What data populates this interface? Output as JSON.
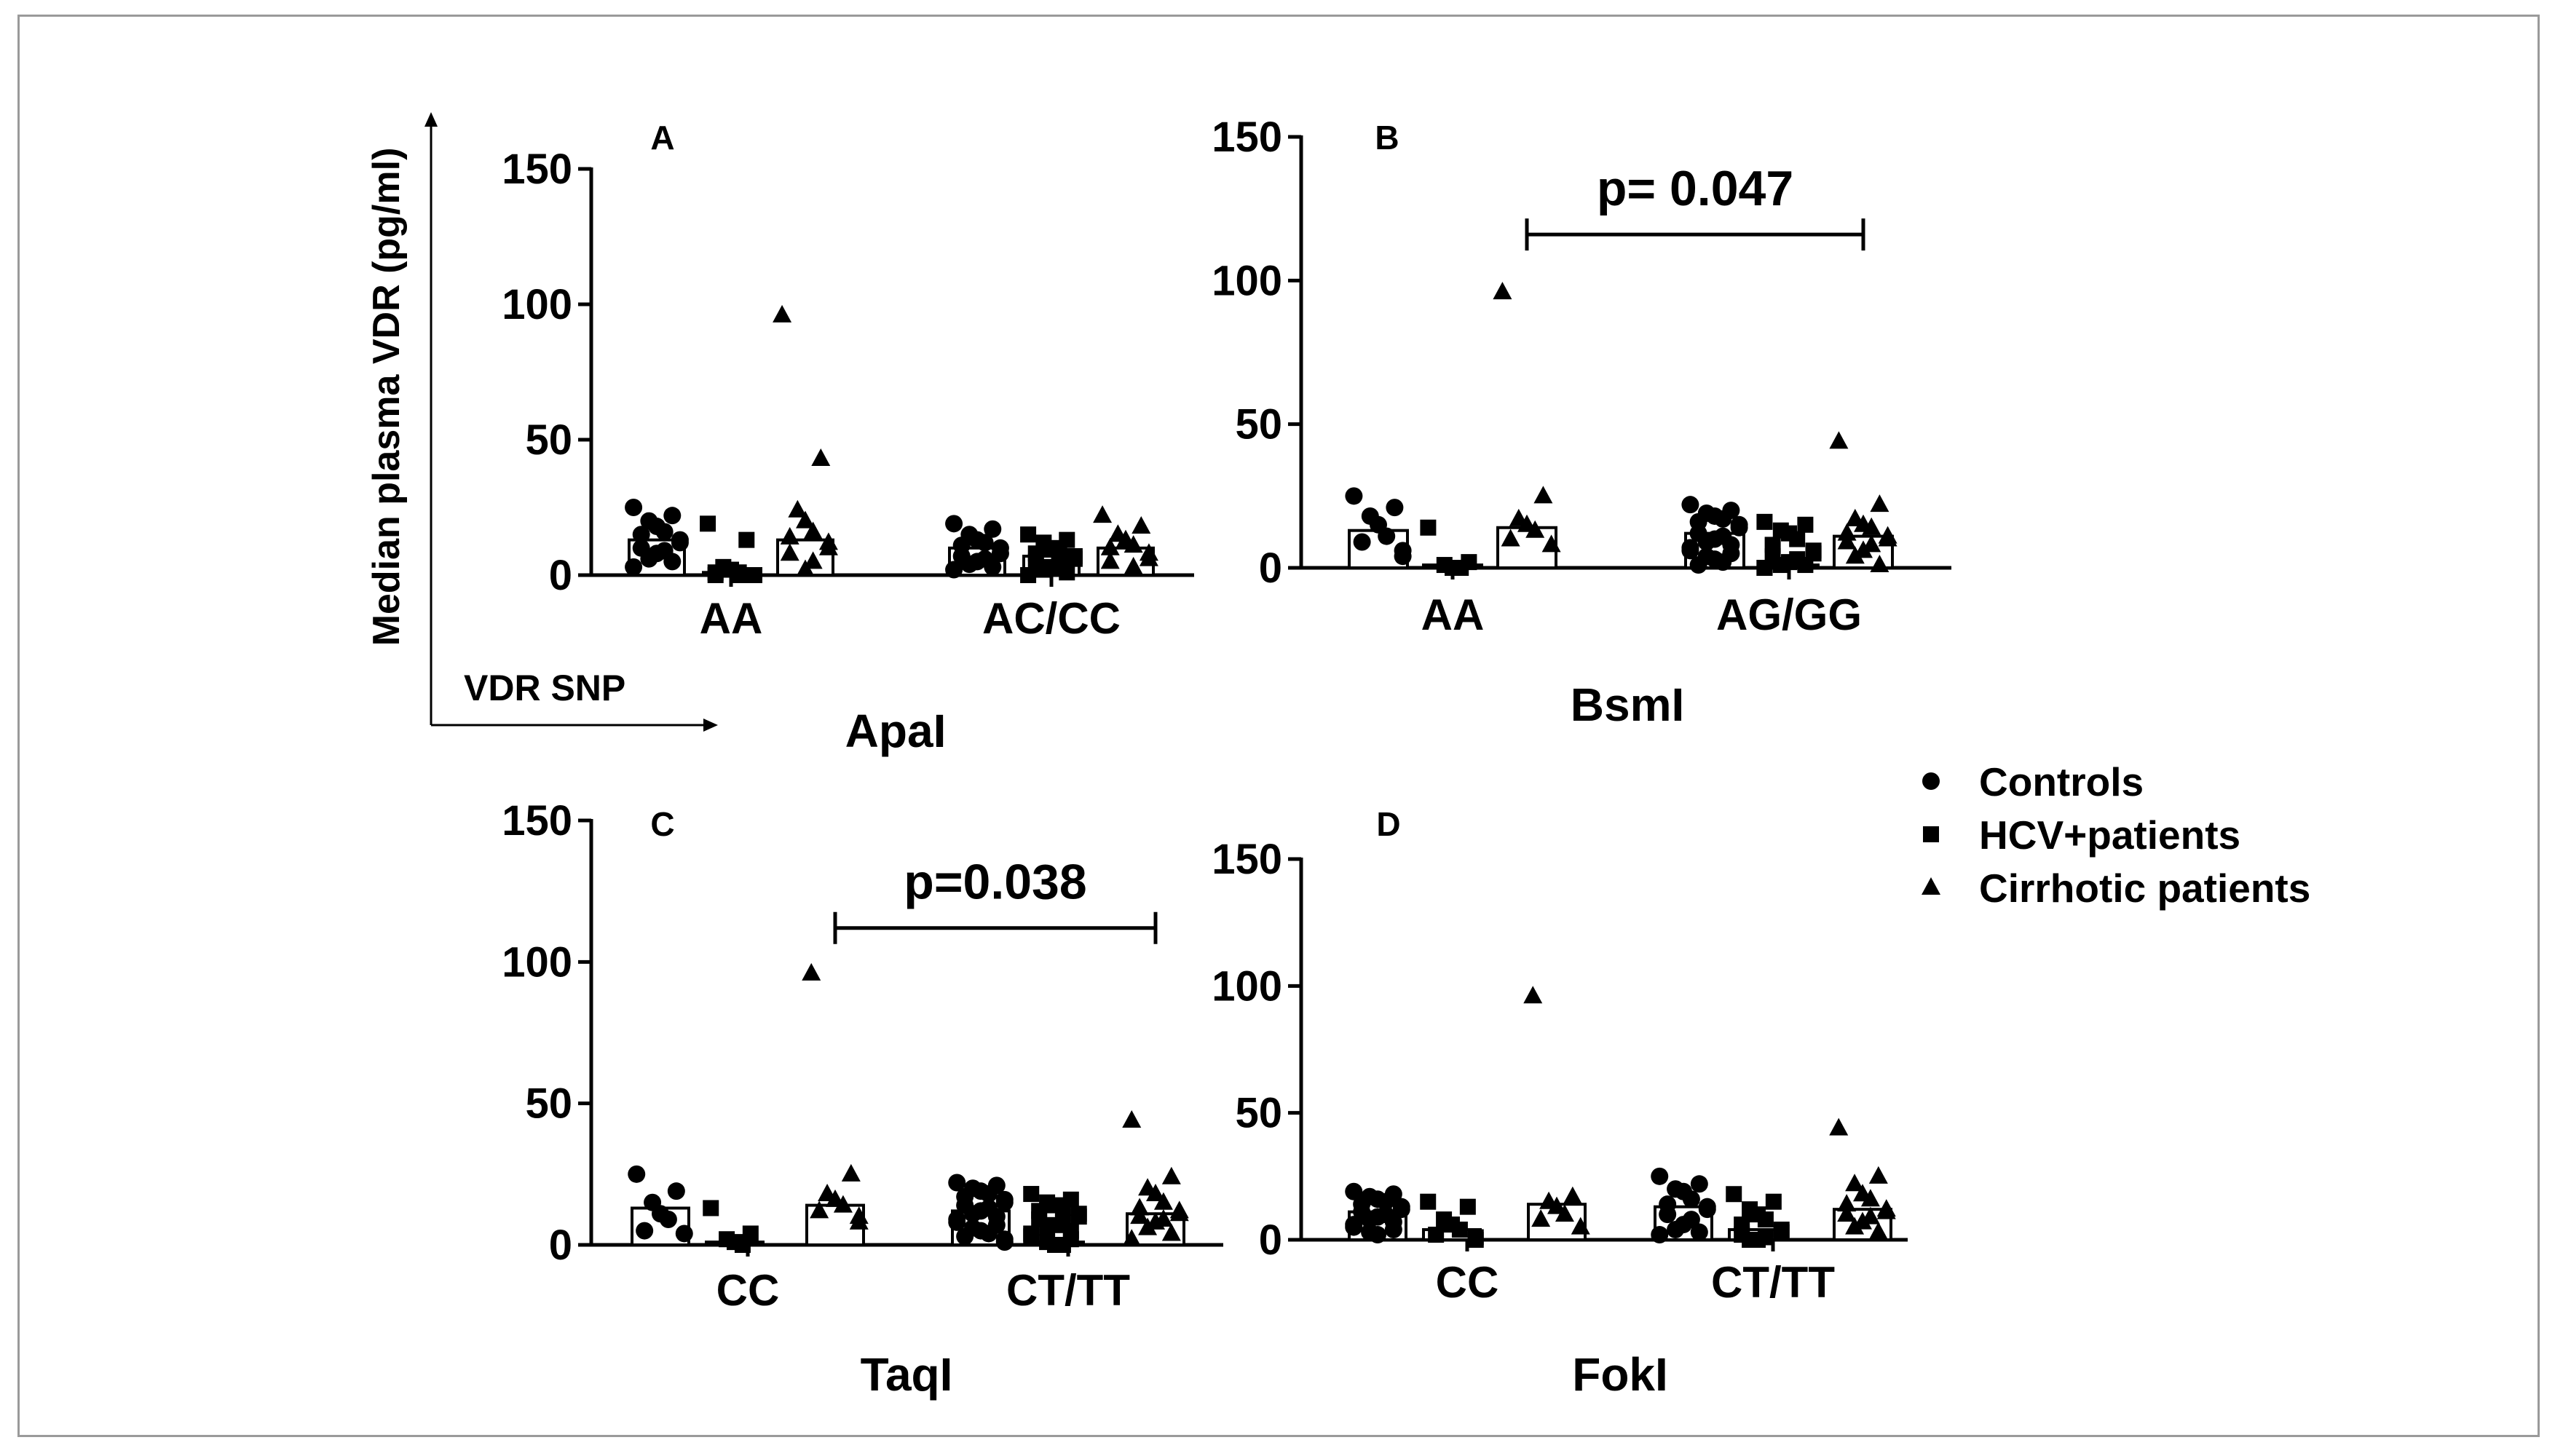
{
  "figure": {
    "y_axis_label": "Median plasma VDR (pg/ml)",
    "x_axis_label": "VDR SNP",
    "legend": [
      {
        "name": "Controls",
        "marker": "circle"
      },
      {
        "name": "HCV+patients",
        "marker": "square"
      },
      {
        "name": "Cirrhotic patients",
        "marker": "triangle"
      }
    ]
  },
  "chart_data": [
    {
      "type": "scatter",
      "panel": "A",
      "title": "ApaI",
      "ylim": [
        0,
        150
      ],
      "yticks": [
        "0",
        "50",
        "100",
        "150"
      ],
      "categories": [
        "AA",
        "AC/CC"
      ],
      "series": [
        {
          "name": "Controls",
          "marker": "circle",
          "bar": [
            13,
            10
          ],
          "points": [
            [
              25,
              22,
              20,
              18,
              16,
              15,
              13,
              12,
              10,
              9,
              8,
              6,
              5,
              3
            ],
            [
              19,
              17,
              15,
              13,
              12,
              11,
              10,
              8,
              7,
              6,
              5,
              4,
              3,
              2
            ]
          ]
        },
        {
          "name": "HCV+patients",
          "marker": "square",
          "bar": [
            1,
            7
          ],
          "points": [
            [
              19,
              13,
              3,
              2,
              1,
              1,
              0,
              0,
              0,
              0
            ],
            [
              15,
              13,
              12,
              10,
              9,
              8,
              7,
              6,
              5,
              4,
              3,
              2,
              1,
              0
            ]
          ]
        },
        {
          "name": "Cirrhotic patients",
          "marker": "triangle",
          "bar": [
            13,
            10
          ],
          "points": [
            [
              96,
              43,
              24,
              20,
              16,
              14,
              12,
              10,
              8,
              5,
              2
            ],
            [
              22,
              18,
              15,
              13,
              11,
              10,
              8,
              6,
              5,
              3
            ]
          ]
        }
      ]
    },
    {
      "type": "scatter",
      "panel": "B",
      "title": "BsmI",
      "ylim": [
        0,
        150
      ],
      "yticks": [
        "0",
        "50",
        "100",
        "150"
      ],
      "categories": [
        "AA",
        "AG/GG"
      ],
      "annotation": {
        "text": "p= 0.047",
        "from_category": 0,
        "from_series": 2,
        "to_category": 1,
        "to_series": 2,
        "y": 116
      },
      "series": [
        {
          "name": "Controls",
          "marker": "circle",
          "bar": [
            13,
            12
          ],
          "points": [
            [
              25,
              21,
              18,
              15,
              11,
              9,
              6,
              4
            ],
            [
              22,
              20,
              19,
              18,
              17,
              16,
              15,
              14,
              12,
              11,
              10,
              9,
              8,
              7,
              6,
              5,
              4,
              3,
              2,
              1
            ]
          ]
        },
        {
          "name": "HCV+patients",
          "marker": "square",
          "bar": [
            1,
            1
          ],
          "points": [
            [
              14,
              2,
              1,
              0,
              0
            ],
            [
              16,
              15,
              13,
              12,
              10,
              8,
              6,
              5,
              4,
              3,
              2,
              1,
              1,
              0,
              0
            ]
          ]
        },
        {
          "name": "Cirrhotic patients",
          "marker": "triangle",
          "bar": [
            14,
            11
          ],
          "points": [
            [
              96,
              25,
              17,
              15,
              13,
              10,
              8
            ],
            [
              44,
              22,
              17,
              15,
              14,
              12,
              11,
              10,
              9,
              8,
              6,
              4,
              1
            ]
          ]
        }
      ]
    },
    {
      "type": "scatter",
      "panel": "C",
      "title": "TaqI",
      "ylim": [
        0,
        150
      ],
      "yticks": [
        "0",
        "50",
        "100",
        "150"
      ],
      "categories": [
        "CC",
        "CT/TT"
      ],
      "annotation": {
        "text": "p=0.038",
        "from_category": 0,
        "from_series": 2,
        "to_category": 1,
        "to_series": 2,
        "y": 112
      },
      "series": [
        {
          "name": "Controls",
          "marker": "circle",
          "bar": [
            13,
            12
          ],
          "points": [
            [
              25,
              19,
              15,
              11,
              9,
              5,
              4
            ],
            [
              22,
              21,
              20,
              19,
              18,
              17,
              16,
              15,
              14,
              13,
              12,
              11,
              10,
              9,
              8,
              7,
              6,
              5,
              4,
              3,
              2,
              1
            ]
          ]
        },
        {
          "name": "HCV+patients",
          "marker": "square",
          "bar": [
            1,
            1
          ],
          "points": [
            [
              13,
              4,
              2,
              1,
              0
            ],
            [
              18,
              16,
              15,
              14,
              13,
              12,
              11,
              10,
              9,
              8,
              7,
              6,
              5,
              4,
              3,
              2,
              1,
              0,
              0
            ]
          ]
        },
        {
          "name": "Cirrhotic patients",
          "marker": "triangle",
          "bar": [
            14,
            11
          ],
          "points": [
            [
              96,
              25,
              18,
              16,
              14,
              12,
              10,
              8
            ],
            [
              44,
              24,
              20,
              18,
              15,
              13,
              12,
              11,
              10,
              9,
              8,
              6,
              4,
              2
            ]
          ]
        }
      ]
    },
    {
      "type": "scatter",
      "panel": "D",
      "title": "FokI",
      "ylim": [
        0,
        150
      ],
      "yticks": [
        "0",
        "50",
        "100",
        "150"
      ],
      "categories": [
        "CC",
        "CT/TT"
      ],
      "series": [
        {
          "name": "Controls",
          "marker": "circle",
          "bar": [
            11,
            13
          ],
          "points": [
            [
              19,
              18,
              17,
              16,
              15,
              14,
              13,
              12,
              11,
              10,
              9,
              8,
              7,
              6,
              5,
              4,
              3,
              2
            ],
            [
              25,
              22,
              20,
              19,
              16,
              14,
              13,
              12,
              10,
              8,
              6,
              4,
              3,
              2
            ]
          ]
        },
        {
          "name": "HCV+patients",
          "marker": "square",
          "bar": [
            4,
            4
          ],
          "points": [
            [
              15,
              13,
              8,
              6,
              4,
              2,
              1,
              0
            ],
            [
              18,
              15,
              12,
              10,
              8,
              6,
              4,
              3,
              2,
              1,
              0,
              0
            ]
          ]
        },
        {
          "name": "Cirrhotic patients",
          "marker": "triangle",
          "bar": [
            14,
            12
          ],
          "points": [
            [
              96,
              17,
              15,
              13,
              10,
              8,
              5
            ],
            [
              44,
              25,
              22,
              18,
              16,
              14,
              12,
              11,
              10,
              9,
              7,
              5,
              3
            ]
          ]
        }
      ]
    }
  ]
}
